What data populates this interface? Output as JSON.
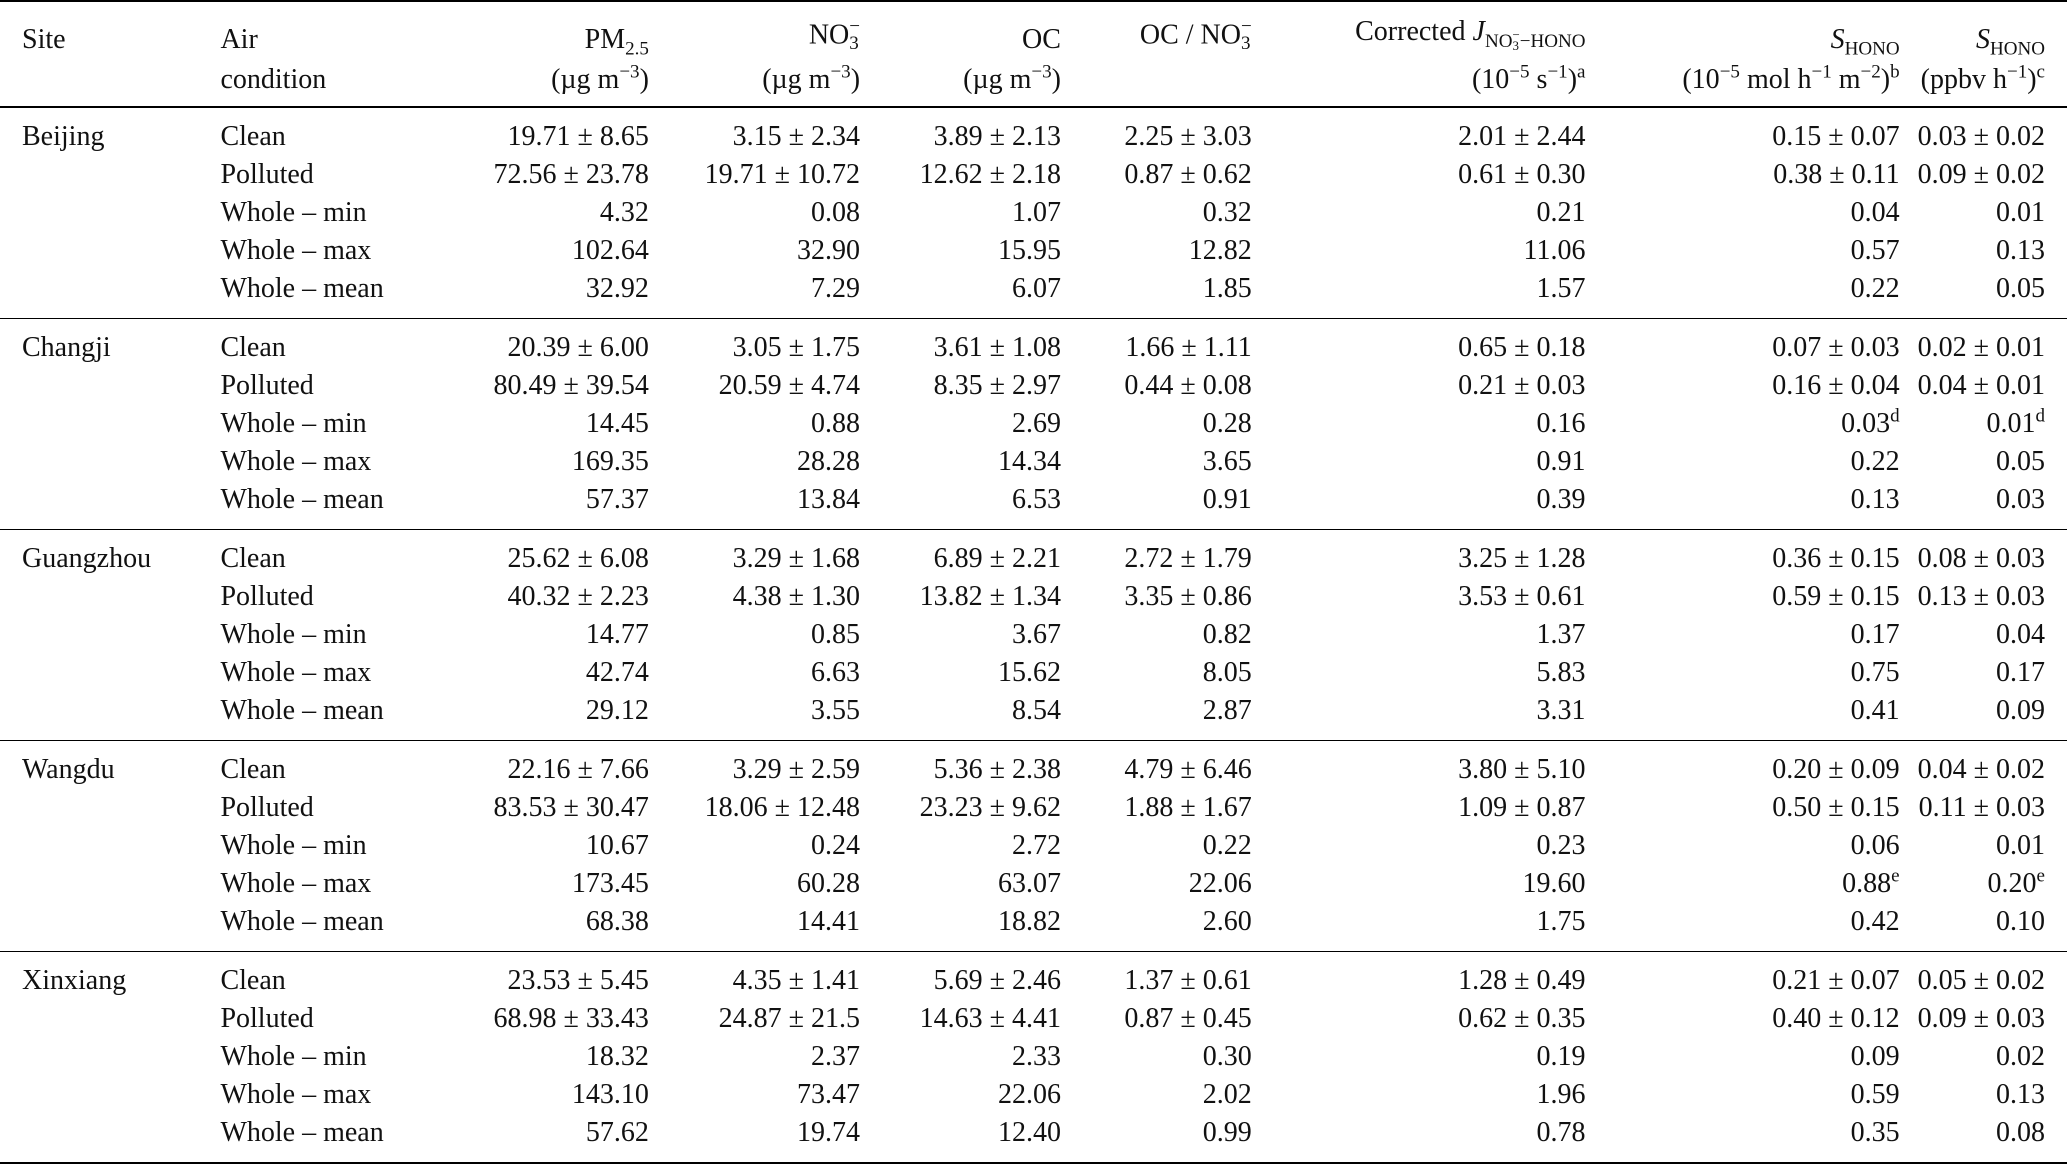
{
  "table": {
    "headers": {
      "site": "Site",
      "air_condition_line1": "Air",
      "air_condition_line2": "condition",
      "pm25_name": "PM",
      "pm25_sub": "2.5",
      "pm25_unit": "(µg m",
      "pm25_unit_exp": "−3",
      "pm25_unit_close": ")",
      "no3_name": "NO",
      "no3_sub": "3",
      "no3_sup": "−",
      "no3_unit": "(µg m",
      "no3_unit_exp": "−3",
      "no3_unit_close": ")",
      "oc_name": "OC",
      "oc_unit": "(µg m",
      "oc_unit_exp": "−3",
      "oc_unit_close": ")",
      "ratio_name": "OC / NO",
      "ratio_sub": "3",
      "ratio_sup": "−",
      "j_prefix": "Corrected ",
      "j_symbol": "J",
      "j_sub_no": "NO",
      "j_sub_3": "3",
      "j_sub_minus": "−",
      "j_sub_hono": "−HONO",
      "j_unit_open": "(10",
      "j_unit_exp": "−5",
      "j_unit_mid": " s",
      "j_unit_exp2": "−1",
      "j_unit_close": ")",
      "j_note": "a",
      "s1_symbol": "S",
      "s1_sub": "HONO",
      "s1_unit_open": "(10",
      "s1_unit_exp": "−5",
      "s1_unit_mid": " mol h",
      "s1_unit_exp2": "−1",
      "s1_unit_mid2": " m",
      "s1_unit_exp3": "−2",
      "s1_unit_close": ")",
      "s1_note": "b",
      "s2_symbol": "S",
      "s2_sub": "HONO",
      "s2_unit_open": "(ppbv h",
      "s2_unit_exp": "−1",
      "s2_unit_close": ")",
      "s2_note": "c"
    },
    "groups": [
      {
        "site": "Beijing",
        "rows": [
          {
            "condition": "Clean",
            "pm25": "19.71 ± 8.65",
            "no3": "3.15 ± 2.34",
            "oc": "3.89 ± 2.13",
            "ratio": "2.25 ± 3.03",
            "j": "2.01 ± 2.44",
            "s1": "0.15 ± 0.07",
            "s1_note": "",
            "s2": "0.03 ± 0.02",
            "s2_note": ""
          },
          {
            "condition": "Polluted",
            "pm25": "72.56 ± 23.78",
            "no3": "19.71 ± 10.72",
            "oc": "12.62 ± 2.18",
            "ratio": "0.87 ± 0.62",
            "j": "0.61 ± 0.30",
            "s1": "0.38 ± 0.11",
            "s1_note": "",
            "s2": "0.09 ± 0.02",
            "s2_note": ""
          },
          {
            "condition": "Whole – min",
            "pm25": "4.32",
            "no3": "0.08",
            "oc": "1.07",
            "ratio": "0.32",
            "j": "0.21",
            "s1": "0.04",
            "s1_note": "",
            "s2": "0.01",
            "s2_note": ""
          },
          {
            "condition": "Whole – max",
            "pm25": "102.64",
            "no3": "32.90",
            "oc": "15.95",
            "ratio": "12.82",
            "j": "11.06",
            "s1": "0.57",
            "s1_note": "",
            "s2": "0.13",
            "s2_note": ""
          },
          {
            "condition": "Whole – mean",
            "pm25": "32.92",
            "no3": "7.29",
            "oc": "6.07",
            "ratio": "1.85",
            "j": "1.57",
            "s1": "0.22",
            "s1_note": "",
            "s2": "0.05",
            "s2_note": ""
          }
        ]
      },
      {
        "site": "Changji",
        "rows": [
          {
            "condition": "Clean",
            "pm25": "20.39 ± 6.00",
            "no3": "3.05 ± 1.75",
            "oc": "3.61 ± 1.08",
            "ratio": "1.66 ± 1.11",
            "j": "0.65 ± 0.18",
            "s1": "0.07 ± 0.03",
            "s1_note": "",
            "s2": "0.02 ± 0.01",
            "s2_note": ""
          },
          {
            "condition": "Polluted",
            "pm25": "80.49 ± 39.54",
            "no3": "20.59 ± 4.74",
            "oc": "8.35 ± 2.97",
            "ratio": "0.44 ± 0.08",
            "j": "0.21 ± 0.03",
            "s1": "0.16 ± 0.04",
            "s1_note": "",
            "s2": "0.04 ± 0.01",
            "s2_note": ""
          },
          {
            "condition": "Whole – min",
            "pm25": "14.45",
            "no3": "0.88",
            "oc": "2.69",
            "ratio": "0.28",
            "j": "0.16",
            "s1": "0.03",
            "s1_note": "d",
            "s2": "0.01",
            "s2_note": "d"
          },
          {
            "condition": "Whole – max",
            "pm25": "169.35",
            "no3": "28.28",
            "oc": "14.34",
            "ratio": "3.65",
            "j": "0.91",
            "s1": "0.22",
            "s1_note": "",
            "s2": "0.05",
            "s2_note": ""
          },
          {
            "condition": "Whole – mean",
            "pm25": "57.37",
            "no3": "13.84",
            "oc": "6.53",
            "ratio": "0.91",
            "j": "0.39",
            "s1": "0.13",
            "s1_note": "",
            "s2": "0.03",
            "s2_note": ""
          }
        ]
      },
      {
        "site": "Guangzhou",
        "rows": [
          {
            "condition": "Clean",
            "pm25": "25.62 ± 6.08",
            "no3": "3.29 ± 1.68",
            "oc": "6.89 ± 2.21",
            "ratio": "2.72 ± 1.79",
            "j": "3.25 ± 1.28",
            "s1": "0.36 ± 0.15",
            "s1_note": "",
            "s2": "0.08 ± 0.03",
            "s2_note": ""
          },
          {
            "condition": "Polluted",
            "pm25": "40.32 ± 2.23",
            "no3": "4.38 ± 1.30",
            "oc": "13.82 ± 1.34",
            "ratio": "3.35 ± 0.86",
            "j": "3.53 ± 0.61",
            "s1": "0.59 ± 0.15",
            "s1_note": "",
            "s2": "0.13 ± 0.03",
            "s2_note": ""
          },
          {
            "condition": "Whole – min",
            "pm25": "14.77",
            "no3": "0.85",
            "oc": "3.67",
            "ratio": "0.82",
            "j": "1.37",
            "s1": "0.17",
            "s1_note": "",
            "s2": "0.04",
            "s2_note": ""
          },
          {
            "condition": "Whole – max",
            "pm25": "42.74",
            "no3": "6.63",
            "oc": "15.62",
            "ratio": "8.05",
            "j": "5.83",
            "s1": "0.75",
            "s1_note": "",
            "s2": "0.17",
            "s2_note": ""
          },
          {
            "condition": "Whole – mean",
            "pm25": "29.12",
            "no3": "3.55",
            "oc": "8.54",
            "ratio": "2.87",
            "j": "3.31",
            "s1": "0.41",
            "s1_note": "",
            "s2": "0.09",
            "s2_note": ""
          }
        ]
      },
      {
        "site": "Wangdu",
        "rows": [
          {
            "condition": "Clean",
            "pm25": "22.16 ± 7.66",
            "no3": "3.29 ± 2.59",
            "oc": "5.36 ± 2.38",
            "ratio": "4.79 ± 6.46",
            "j": "3.80 ± 5.10",
            "s1": "0.20 ± 0.09",
            "s1_note": "",
            "s2": "0.04 ± 0.02",
            "s2_note": ""
          },
          {
            "condition": "Polluted",
            "pm25": "83.53 ± 30.47",
            "no3": "18.06 ± 12.48",
            "oc": "23.23 ± 9.62",
            "ratio": "1.88 ± 1.67",
            "j": "1.09 ± 0.87",
            "s1": "0.50 ± 0.15",
            "s1_note": "",
            "s2": "0.11 ± 0.03",
            "s2_note": ""
          },
          {
            "condition": "Whole – min",
            "pm25": "10.67",
            "no3": "0.24",
            "oc": "2.72",
            "ratio": "0.22",
            "j": "0.23",
            "s1": "0.06",
            "s1_note": "",
            "s2": "0.01",
            "s2_note": ""
          },
          {
            "condition": "Whole – max",
            "pm25": "173.45",
            "no3": "60.28",
            "oc": "63.07",
            "ratio": "22.06",
            "j": "19.60",
            "s1": "0.88",
            "s1_note": "e",
            "s2": "0.20",
            "s2_note": "e"
          },
          {
            "condition": "Whole – mean",
            "pm25": "68.38",
            "no3": "14.41",
            "oc": "18.82",
            "ratio": "2.60",
            "j": "1.75",
            "s1": "0.42",
            "s1_note": "",
            "s2": "0.10",
            "s2_note": ""
          }
        ]
      },
      {
        "site": "Xinxiang",
        "rows": [
          {
            "condition": "Clean",
            "pm25": "23.53 ± 5.45",
            "no3": "4.35 ± 1.41",
            "oc": "5.69 ± 2.46",
            "ratio": "1.37 ± 0.61",
            "j": "1.28 ± 0.49",
            "s1": "0.21 ± 0.07",
            "s1_note": "",
            "s2": "0.05 ± 0.02",
            "s2_note": ""
          },
          {
            "condition": "Polluted",
            "pm25": "68.98 ± 33.43",
            "no3": "24.87 ± 21.5",
            "oc": "14.63 ± 4.41",
            "ratio": "0.87 ± 0.45",
            "j": "0.62 ± 0.35",
            "s1": "0.40 ± 0.12",
            "s1_note": "",
            "s2": "0.09 ± 0.03",
            "s2_note": ""
          },
          {
            "condition": "Whole – min",
            "pm25": "18.32",
            "no3": "2.37",
            "oc": "2.33",
            "ratio": "0.30",
            "j": "0.19",
            "s1": "0.09",
            "s1_note": "",
            "s2": "0.02",
            "s2_note": ""
          },
          {
            "condition": "Whole – max",
            "pm25": "143.10",
            "no3": "73.47",
            "oc": "22.06",
            "ratio": "2.02",
            "j": "1.96",
            "s1": "0.59",
            "s1_note": "",
            "s2": "0.13",
            "s2_note": ""
          },
          {
            "condition": "Whole – mean",
            "pm25": "57.62",
            "no3": "19.74",
            "oc": "12.40",
            "ratio": "0.99",
            "j": "0.78",
            "s1": "0.35",
            "s1_note": "",
            "s2": "0.08",
            "s2_note": ""
          }
        ]
      }
    ]
  }
}
